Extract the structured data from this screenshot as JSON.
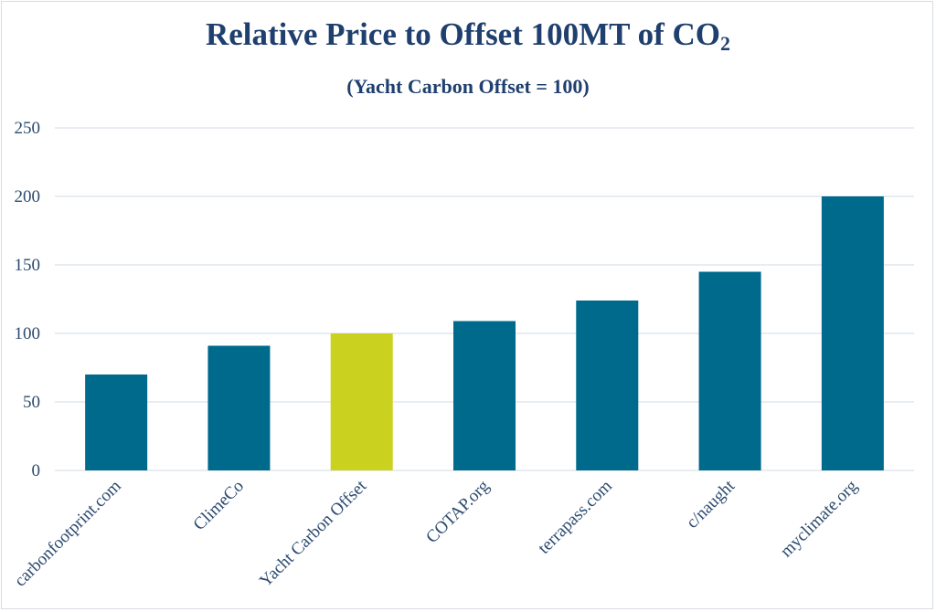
{
  "chart_data": {
    "type": "bar",
    "title_main": "Relative Price to Offset 100MT of CO",
    "title_sub": "2",
    "subtitle": "(Yacht Carbon Offset = 100)",
    "categories": [
      "carbonfootprint.com",
      "ClimeCo",
      "Yacht Carbon Offset",
      "COTAP.org",
      "terrapass.com",
      "c/naught",
      "myclimate.org"
    ],
    "values": [
      70,
      91,
      100,
      109,
      124,
      145,
      200
    ],
    "highlight_category": "Yacht Carbon Offset",
    "ylim": [
      0,
      250
    ],
    "yticks": [
      0,
      50,
      100,
      150,
      200,
      250
    ],
    "grid": true,
    "legend": "none",
    "colors": {
      "bar": "#006a8c",
      "highlight": "#cbd11f",
      "grid": "#d9e2ea",
      "text": "#1f3f6e"
    }
  }
}
